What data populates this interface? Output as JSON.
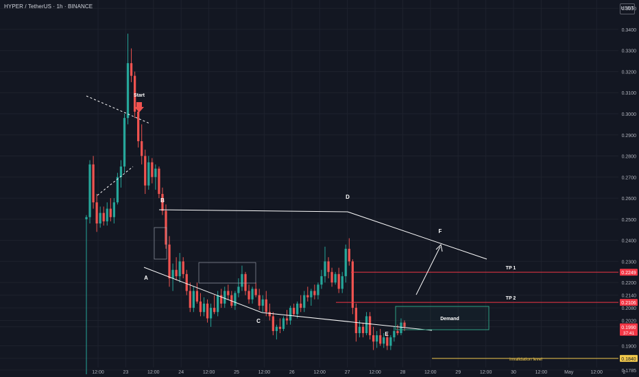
{
  "header": {
    "symbol_line": "HYPER / TetherUS · 1h · BINANCE",
    "currency": "USDT"
  },
  "chart_data": {
    "type": "candlestick",
    "symbol": "HYPER / TetherUS",
    "timeframe": "1h",
    "exchange": "BINANCE",
    "ylim": [
      0.1765,
      0.352
    ],
    "y_ticks": [
      "0.3500",
      "0.3400",
      "0.3300",
      "0.3200",
      "0.3100",
      "0.3000",
      "0.2900",
      "0.2800",
      "0.2700",
      "0.2600",
      "0.2500",
      "0.2400",
      "0.2300",
      "0.2200",
      "0.2140",
      "0.2080",
      "0.2020",
      "0.1990",
      "0.1900",
      "0.1840",
      "0.1785"
    ],
    "x_ticks": [
      "12:00",
      "23",
      "12:00",
      "24",
      "12:00",
      "25",
      "12:00",
      "26",
      "12:00",
      "27",
      "12:00",
      "28",
      "12:00",
      "29",
      "12:00",
      "30",
      "12:00",
      "May",
      "12:00",
      "2"
    ],
    "price_labels": {
      "tp1": {
        "value": 0.2249,
        "text": "0.2249",
        "color": "#f23645"
      },
      "tp2": {
        "value": 0.2106,
        "text": "0.2106",
        "color": "#f23645"
      },
      "last": {
        "value": 0.199,
        "text": "0.1990",
        "countdown": "37:41",
        "color": "#f23645"
      },
      "invalidation": {
        "value": 0.184,
        "text": "0.1840",
        "color": "#f2c94c"
      }
    },
    "annotations": {
      "start": "Start",
      "points": [
        "A",
        "B",
        "C",
        "D",
        "E",
        "F"
      ],
      "tp1": "TP 1",
      "tp2": "TP 2",
      "demand": "Demand",
      "invalidation": "invalidation level"
    },
    "candles": [
      [
        0.25,
        0.252,
        0.1765,
        0.251
      ],
      [
        0.251,
        0.278,
        0.248,
        0.276
      ],
      [
        0.276,
        0.28,
        0.255,
        0.258
      ],
      [
        0.258,
        0.262,
        0.244,
        0.248
      ],
      [
        0.248,
        0.256,
        0.246,
        0.253
      ],
      [
        0.253,
        0.256,
        0.247,
        0.249
      ],
      [
        0.249,
        0.258,
        0.247,
        0.255
      ],
      [
        0.255,
        0.26,
        0.249,
        0.251
      ],
      [
        0.251,
        0.26,
        0.248,
        0.258
      ],
      [
        0.258,
        0.272,
        0.257,
        0.27
      ],
      [
        0.27,
        0.278,
        0.265,
        0.275
      ],
      [
        0.275,
        0.3,
        0.272,
        0.298
      ],
      [
        0.298,
        0.338,
        0.295,
        0.324
      ],
      [
        0.324,
        0.331,
        0.315,
        0.318
      ],
      [
        0.318,
        0.32,
        0.298,
        0.301
      ],
      [
        0.301,
        0.305,
        0.284,
        0.287
      ],
      [
        0.287,
        0.295,
        0.276,
        0.28
      ],
      [
        0.28,
        0.283,
        0.262,
        0.266
      ],
      [
        0.266,
        0.28,
        0.264,
        0.277
      ],
      [
        0.277,
        0.279,
        0.267,
        0.27
      ],
      [
        0.27,
        0.276,
        0.264,
        0.274
      ],
      [
        0.274,
        0.275,
        0.26,
        0.262
      ],
      [
        0.262,
        0.265,
        0.252,
        0.254
      ],
      [
        0.254,
        0.257,
        0.236,
        0.238
      ],
      [
        0.238,
        0.242,
        0.218,
        0.222
      ],
      [
        0.222,
        0.229,
        0.216,
        0.226
      ],
      [
        0.226,
        0.232,
        0.221,
        0.223
      ],
      [
        0.223,
        0.234,
        0.22,
        0.23
      ],
      [
        0.23,
        0.232,
        0.222,
        0.224
      ],
      [
        0.224,
        0.226,
        0.214,
        0.216
      ],
      [
        0.216,
        0.22,
        0.206,
        0.208
      ],
      [
        0.208,
        0.218,
        0.206,
        0.216
      ],
      [
        0.216,
        0.22,
        0.21,
        0.211
      ],
      [
        0.211,
        0.215,
        0.204,
        0.206
      ],
      [
        0.206,
        0.213,
        0.204,
        0.21
      ],
      [
        0.21,
        0.212,
        0.201,
        0.203
      ],
      [
        0.203,
        0.21,
        0.199,
        0.208
      ],
      [
        0.208,
        0.214,
        0.205,
        0.206
      ],
      [
        0.206,
        0.216,
        0.204,
        0.214
      ],
      [
        0.214,
        0.217,
        0.208,
        0.21
      ],
      [
        0.21,
        0.218,
        0.208,
        0.216
      ],
      [
        0.216,
        0.219,
        0.212,
        0.214
      ],
      [
        0.214,
        0.216,
        0.208,
        0.209
      ],
      [
        0.209,
        0.216,
        0.207,
        0.215
      ],
      [
        0.215,
        0.222,
        0.213,
        0.218
      ],
      [
        0.218,
        0.228,
        0.216,
        0.224
      ],
      [
        0.224,
        0.225,
        0.214,
        0.216
      ],
      [
        0.216,
        0.219,
        0.21,
        0.212
      ],
      [
        0.212,
        0.218,
        0.21,
        0.217
      ],
      [
        0.217,
        0.22,
        0.213,
        0.214
      ],
      [
        0.214,
        0.217,
        0.207,
        0.209
      ],
      [
        0.209,
        0.214,
        0.206,
        0.212
      ],
      [
        0.212,
        0.216,
        0.204,
        0.206
      ],
      [
        0.206,
        0.21,
        0.202,
        0.204
      ],
      [
        0.204,
        0.206,
        0.195,
        0.197
      ],
      [
        0.197,
        0.2,
        0.193,
        0.199
      ],
      [
        0.199,
        0.203,
        0.196,
        0.198
      ],
      [
        0.198,
        0.204,
        0.197,
        0.203
      ],
      [
        0.203,
        0.207,
        0.2,
        0.202
      ],
      [
        0.202,
        0.209,
        0.2,
        0.208
      ],
      [
        0.208,
        0.21,
        0.204,
        0.205
      ],
      [
        0.205,
        0.211,
        0.203,
        0.21
      ],
      [
        0.21,
        0.214,
        0.206,
        0.208
      ],
      [
        0.208,
        0.216,
        0.206,
        0.214
      ],
      [
        0.214,
        0.218,
        0.211,
        0.213
      ],
      [
        0.213,
        0.217,
        0.209,
        0.216
      ],
      [
        0.216,
        0.219,
        0.212,
        0.214
      ],
      [
        0.214,
        0.22,
        0.212,
        0.219
      ],
      [
        0.219,
        0.226,
        0.217,
        0.223
      ],
      [
        0.223,
        0.237,
        0.22,
        0.23
      ],
      [
        0.23,
        0.232,
        0.222,
        0.225
      ],
      [
        0.225,
        0.227,
        0.218,
        0.22
      ],
      [
        0.22,
        0.225,
        0.219,
        0.224
      ],
      [
        0.224,
        0.227,
        0.215,
        0.217
      ],
      [
        0.217,
        0.225,
        0.215,
        0.223
      ],
      [
        0.223,
        0.238,
        0.22,
        0.236
      ],
      [
        0.236,
        0.241,
        0.228,
        0.23
      ],
      [
        0.23,
        0.231,
        0.205,
        0.208
      ],
      [
        0.208,
        0.21,
        0.192,
        0.196
      ],
      [
        0.196,
        0.202,
        0.194,
        0.199
      ],
      [
        0.199,
        0.201,
        0.194,
        0.196
      ],
      [
        0.196,
        0.206,
        0.195,
        0.204
      ],
      [
        0.204,
        0.206,
        0.193,
        0.195
      ],
      [
        0.195,
        0.199,
        0.188,
        0.192
      ],
      [
        0.192,
        0.197,
        0.189,
        0.195
      ],
      [
        0.195,
        0.198,
        0.19,
        0.191
      ],
      [
        0.191,
        0.196,
        0.189,
        0.194
      ],
      [
        0.194,
        0.196,
        0.188,
        0.19
      ],
      [
        0.19,
        0.195,
        0.188,
        0.194
      ],
      [
        0.194,
        0.199,
        0.192,
        0.197
      ],
      [
        0.197,
        0.2,
        0.195,
        0.196
      ],
      [
        0.196,
        0.203,
        0.195,
        0.201
      ],
      [
        0.201,
        0.202,
        0.197,
        0.199
      ]
    ],
    "colors": {
      "background": "#131722",
      "up": "#26a69a",
      "down": "#ef5350",
      "grid": "#1e222d",
      "axis_text": "#b2b5be",
      "overlay": "#ffffff",
      "demand_box": "#2ea083",
      "tp_line": "#f23645",
      "invalidation_line": "#f2c94c"
    }
  }
}
